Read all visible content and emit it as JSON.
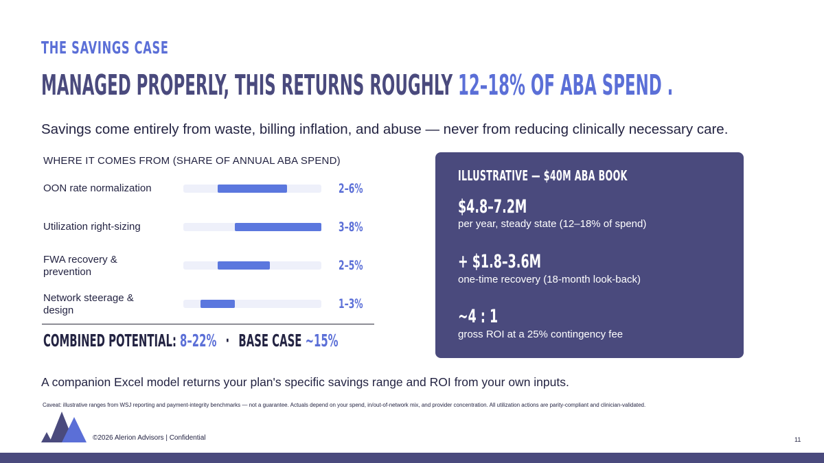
{
  "header": {
    "eyebrow": "THE SAVINGS CASE",
    "headline_prefix": "MANAGED PROPERLY, THIS RETURNS ROUGHLY ",
    "headline_highlight": "12–18% OF ABA SPEND .",
    "subtitle": "Savings come entirely from waste, billing inflation, and abuse — never from reducing clinically necessary care."
  },
  "breakdown": {
    "title": "WHERE IT COMES FROM  (SHARE OF ANNUAL ABA SPEND)",
    "scale_max_pct": 8,
    "items": [
      {
        "label": "OON rate normalization",
        "low": 2,
        "high": 6,
        "range": "2–6%"
      },
      {
        "label": "Utilization right-sizing",
        "low": 3,
        "high": 8,
        "range": "3–8%"
      },
      {
        "label": "FWA recovery & prevention",
        "low": 2,
        "high": 5,
        "range": "2–5%"
      },
      {
        "label": "Network steerage & design",
        "low": 1,
        "high": 3,
        "range": "1–3%"
      }
    ],
    "combined_label": "COMBINED POTENTIAL:",
    "combined_value": "8–22%",
    "separator": "·",
    "base_label": "BASE CASE",
    "base_value": "~15%"
  },
  "card": {
    "title": "ILLUSTRATIVE — $40M ABA BOOK",
    "metrics": [
      {
        "value": "$4.8–7.2M",
        "desc": "per year, steady state (12–18% of spend)"
      },
      {
        "value": "+ $1.8–3.6M",
        "desc": "one-time recovery (18-month look-back)"
      },
      {
        "value": "~4 : 1",
        "desc": "gross ROI at a 25% contingency fee"
      }
    ]
  },
  "companion": "A companion Excel model returns your plan's specific savings range and ROI from your own inputs.",
  "caveat": "Caveat:  illustrative ranges from WSJ reporting and payment-integrity benchmarks — not a guarantee. Actuals depend on your spend, in/out-of-network mix, and provider concentration. All utilization actions are parity-compliant and clinician-validated.",
  "footer": {
    "text": "©2026 Alerion Advisors | Confidential",
    "page_number": "11",
    "logo_icon": "mountain-peaks-icon"
  },
  "colors": {
    "accent": "#5b6fd7",
    "navy": "#4a4a7d",
    "track": "#eef0fa",
    "bar": "#5b77de"
  }
}
